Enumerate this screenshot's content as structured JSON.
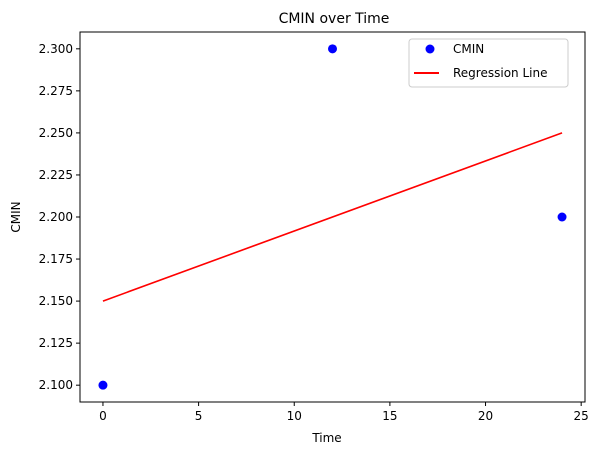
{
  "chart_data": {
    "type": "scatter",
    "title": "CMIN over Time",
    "xlabel": "Time",
    "ylabel": "CMIN",
    "xlim": [
      -1.2,
      25.2
    ],
    "ylim": [
      2.09,
      2.31
    ],
    "xticks": [
      0,
      5,
      10,
      15,
      20,
      25
    ],
    "xtick_labels": [
      "0",
      "5",
      "10",
      "15",
      "20",
      "25"
    ],
    "yticks": [
      2.1,
      2.125,
      2.15,
      2.175,
      2.2,
      2.225,
      2.25,
      2.275,
      2.3
    ],
    "ytick_labels": [
      "2.100",
      "2.125",
      "2.150",
      "2.175",
      "2.200",
      "2.225",
      "2.250",
      "2.275",
      "2.300"
    ],
    "grid": false,
    "legend_position": "top-right",
    "series": [
      {
        "name": "CMIN",
        "kind": "scatter",
        "color": "#0000ff",
        "x": [
          0,
          12,
          24
        ],
        "y": [
          2.1,
          2.3,
          2.2
        ]
      },
      {
        "name": "Regression Line",
        "kind": "line",
        "color": "#ff0000",
        "x": [
          0,
          24
        ],
        "y": [
          2.15,
          2.25
        ]
      }
    ]
  }
}
